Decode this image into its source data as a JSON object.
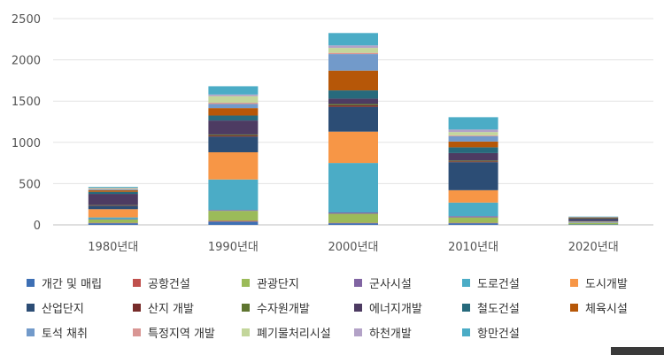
{
  "chart_data": {
    "type": "bar",
    "stacked": true,
    "categories": [
      "1980년대",
      "1990년대",
      "2000년대",
      "2010년대",
      "2020년대"
    ],
    "ylim": [
      0,
      2500
    ],
    "yticks": [
      0,
      500,
      1000,
      1500,
      2000,
      2500
    ],
    "grid": true,
    "legend_position": "bottom",
    "series": [
      {
        "name": "개간 및 매립",
        "color": "#3d6fb4",
        "values": [
          20,
          40,
          20,
          20,
          5
        ]
      },
      {
        "name": "공항건설",
        "color": "#c0504d",
        "values": [
          5,
          10,
          5,
          5,
          0
        ]
      },
      {
        "name": "관광단지",
        "color": "#9bbb59",
        "values": [
          40,
          120,
          110,
          65,
          20
        ]
      },
      {
        "name": "군사시설",
        "color": "#8064a2",
        "values": [
          5,
          10,
          15,
          15,
          5
        ]
      },
      {
        "name": "도로건설",
        "color": "#4bacc6",
        "values": [
          20,
          370,
          600,
          165,
          5
        ]
      },
      {
        "name": "도시개발",
        "color": "#f79646",
        "values": [
          100,
          330,
          380,
          150,
          5
        ]
      },
      {
        "name": "산업단지",
        "color": "#2c4d75",
        "values": [
          40,
          190,
          300,
          340,
          10
        ]
      },
      {
        "name": "산지 개발",
        "color": "#772c2a",
        "values": [
          5,
          15,
          20,
          10,
          0
        ]
      },
      {
        "name": "수자원개발",
        "color": "#5f7530",
        "values": [
          5,
          10,
          15,
          10,
          0
        ]
      },
      {
        "name": "에너지개발",
        "color": "#4d3b62",
        "values": [
          135,
          170,
          65,
          90,
          20
        ]
      },
      {
        "name": "철도건설",
        "color": "#276a7c",
        "values": [
          25,
          60,
          100,
          70,
          10
        ]
      },
      {
        "name": "체육시설",
        "color": "#b65708",
        "values": [
          20,
          90,
          240,
          70,
          10
        ]
      },
      {
        "name": "토석 채취",
        "color": "#729aca",
        "values": [
          10,
          50,
          200,
          65,
          5
        ]
      },
      {
        "name": "특정지역 개발",
        "color": "#d99694",
        "values": [
          5,
          15,
          15,
          10,
          0
        ]
      },
      {
        "name": "폐기물처리시설",
        "color": "#c3d69b",
        "values": [
          10,
          80,
          60,
          40,
          0
        ]
      },
      {
        "name": "하천개발",
        "color": "#b3a2c7",
        "values": [
          5,
          20,
          30,
          30,
          0
        ]
      },
      {
        "name": "항만건설",
        "color": "#4bacc6",
        "values": [
          10,
          100,
          150,
          150,
          5
        ]
      }
    ]
  }
}
